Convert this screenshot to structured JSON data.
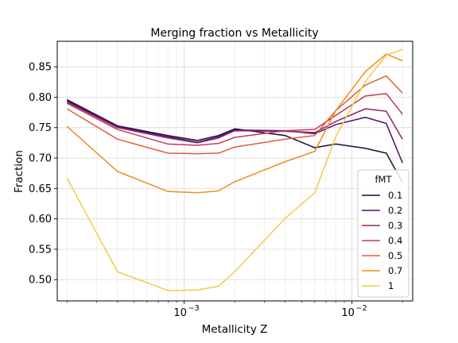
{
  "chart_data": {
    "type": "line",
    "title": "Merging fraction vs Metallicity",
    "xlabel": "Metallicity Z",
    "ylabel": "Fraction",
    "xscale": "log",
    "xlim": [
      0.000175,
      0.023
    ],
    "ylim": [
      0.465,
      0.892
    ],
    "grid": true,
    "legend": {
      "title": "fMT",
      "placement": "lower-right"
    },
    "x_ticks": [
      {
        "value": 0.001,
        "base": "10",
        "exp": "−3"
      },
      {
        "value": 0.01,
        "base": "10",
        "exp": "−2"
      }
    ],
    "y_ticks": [
      {
        "value": 0.5,
        "label": "0.50"
      },
      {
        "value": 0.55,
        "label": "0.55"
      },
      {
        "value": 0.6,
        "label": "0.60"
      },
      {
        "value": 0.65,
        "label": "0.65"
      },
      {
        "value": 0.7,
        "label": "0.70"
      },
      {
        "value": 0.75,
        "label": "0.75"
      },
      {
        "value": 0.8,
        "label": "0.80"
      },
      {
        "value": 0.85,
        "label": "0.85"
      }
    ],
    "x": [
      0.0002,
      0.0004,
      0.0008,
      0.0012,
      0.0016,
      0.002,
      0.004,
      0.006,
      0.008,
      0.012,
      0.016,
      0.02
    ],
    "series": [
      {
        "name": "0.1",
        "color": "#1a0c3a",
        "values": [
          0.796,
          0.753,
          0.737,
          0.729,
          0.737,
          0.748,
          0.737,
          0.717,
          0.723,
          0.716,
          0.708,
          0.66
        ]
      },
      {
        "name": "0.2",
        "color": "#4e0e6e",
        "values": [
          0.794,
          0.752,
          0.735,
          0.726,
          0.735,
          0.746,
          0.745,
          0.74,
          0.755,
          0.767,
          0.757,
          0.692
        ]
      },
      {
        "name": "0.3",
        "color": "#8e2465",
        "values": [
          0.792,
          0.75,
          0.733,
          0.725,
          0.733,
          0.745,
          0.744,
          0.742,
          0.76,
          0.781,
          0.777,
          0.731
        ]
      },
      {
        "name": "0.4",
        "color": "#c33a5a",
        "values": [
          0.79,
          0.747,
          0.723,
          0.721,
          0.724,
          0.734,
          0.745,
          0.747,
          0.77,
          0.802,
          0.806,
          0.772
        ]
      },
      {
        "name": "0.5",
        "color": "#e05d3a",
        "values": [
          0.781,
          0.731,
          0.708,
          0.707,
          0.708,
          0.718,
          0.731,
          0.737,
          0.778,
          0.82,
          0.835,
          0.807
        ]
      },
      {
        "name": "0.7",
        "color": "#f28c1a",
        "values": [
          0.752,
          0.678,
          0.645,
          0.643,
          0.646,
          0.661,
          0.694,
          0.711,
          0.778,
          0.842,
          0.871,
          0.86
        ]
      },
      {
        "name": "1",
        "color": "#f2cc44",
        "values": [
          0.667,
          0.513,
          0.482,
          0.483,
          0.489,
          0.513,
          0.601,
          0.643,
          0.735,
          0.826,
          0.869,
          0.879
        ]
      }
    ]
  }
}
